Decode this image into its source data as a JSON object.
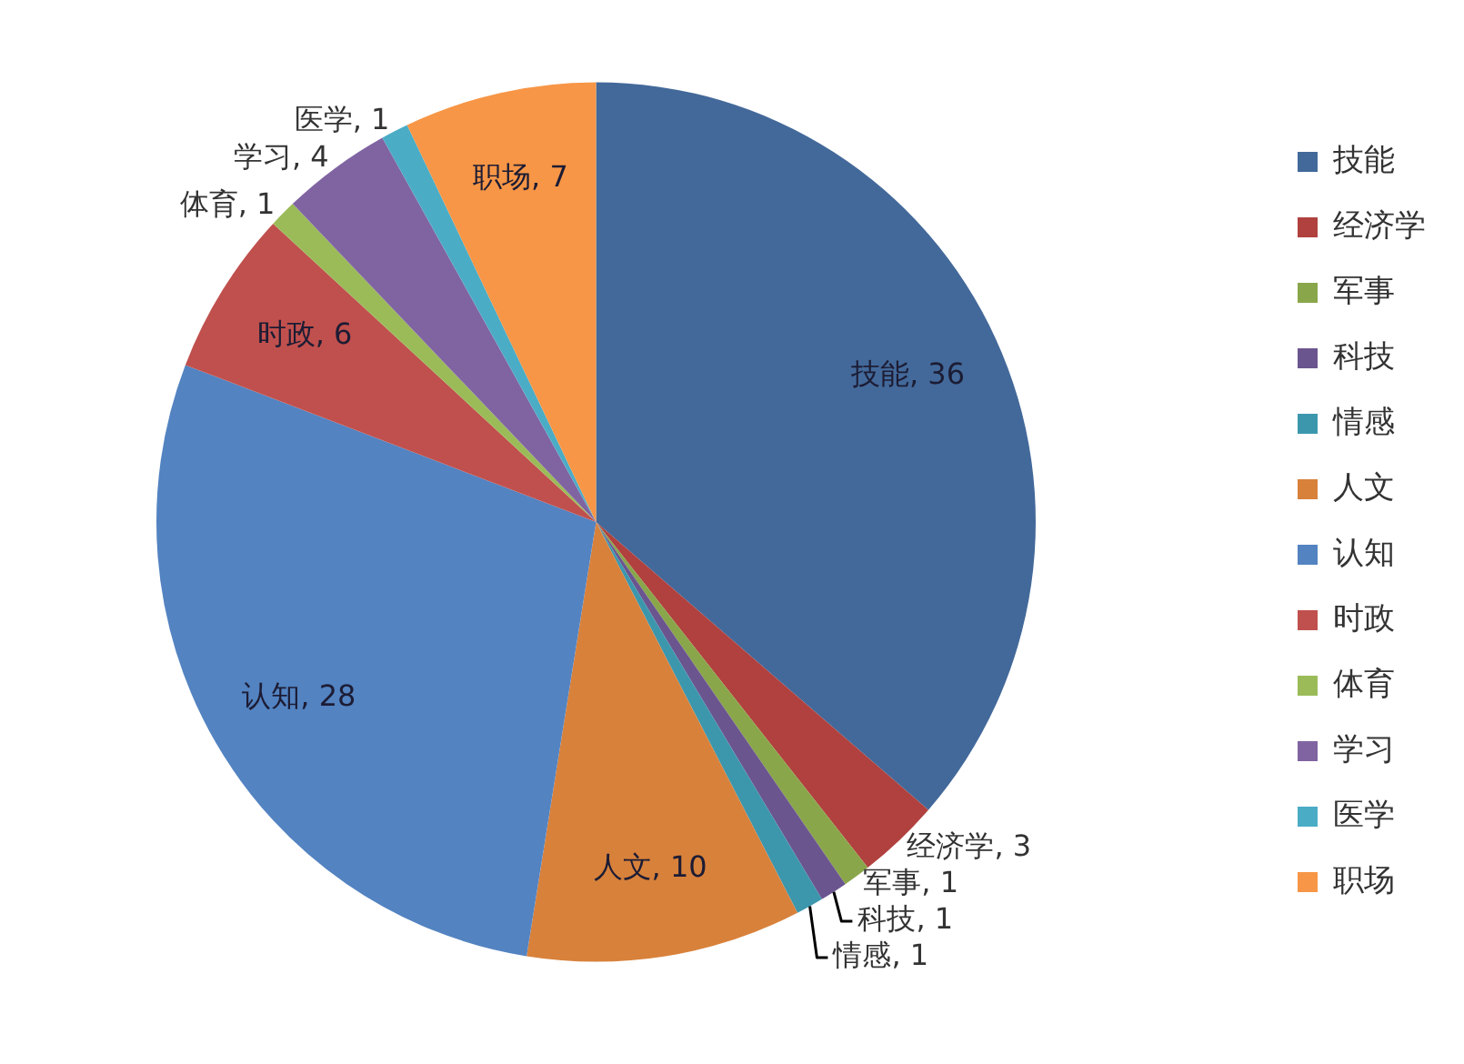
{
  "chart_data": {
    "type": "pie",
    "categories": [
      "技能",
      "经济学",
      "军事",
      "科技",
      "情感",
      "人文",
      "认知",
      "时政",
      "体育",
      "学习",
      "医学",
      "职场"
    ],
    "values": [
      36,
      3,
      1,
      1,
      1,
      10,
      28,
      6,
      1,
      4,
      1,
      7
    ],
    "colors": [
      "#43699a",
      "#b0413e",
      "#8aa64a",
      "#6b558f",
      "#3c97ad",
      "#d8813b",
      "#5383c1",
      "#c0504d",
      "#9bbb59",
      "#8064a2",
      "#4bacc6",
      "#f79646"
    ],
    "value_labels": [
      "技能, 36",
      "经济学, 3",
      "军事, 1",
      "科技, 1",
      "情感, 1",
      "人文, 10",
      "认知, 28",
      "时政, 6",
      "体育, 1",
      "学习, 4",
      "医学, 1",
      "职场, 7"
    ],
    "legend": "right"
  }
}
